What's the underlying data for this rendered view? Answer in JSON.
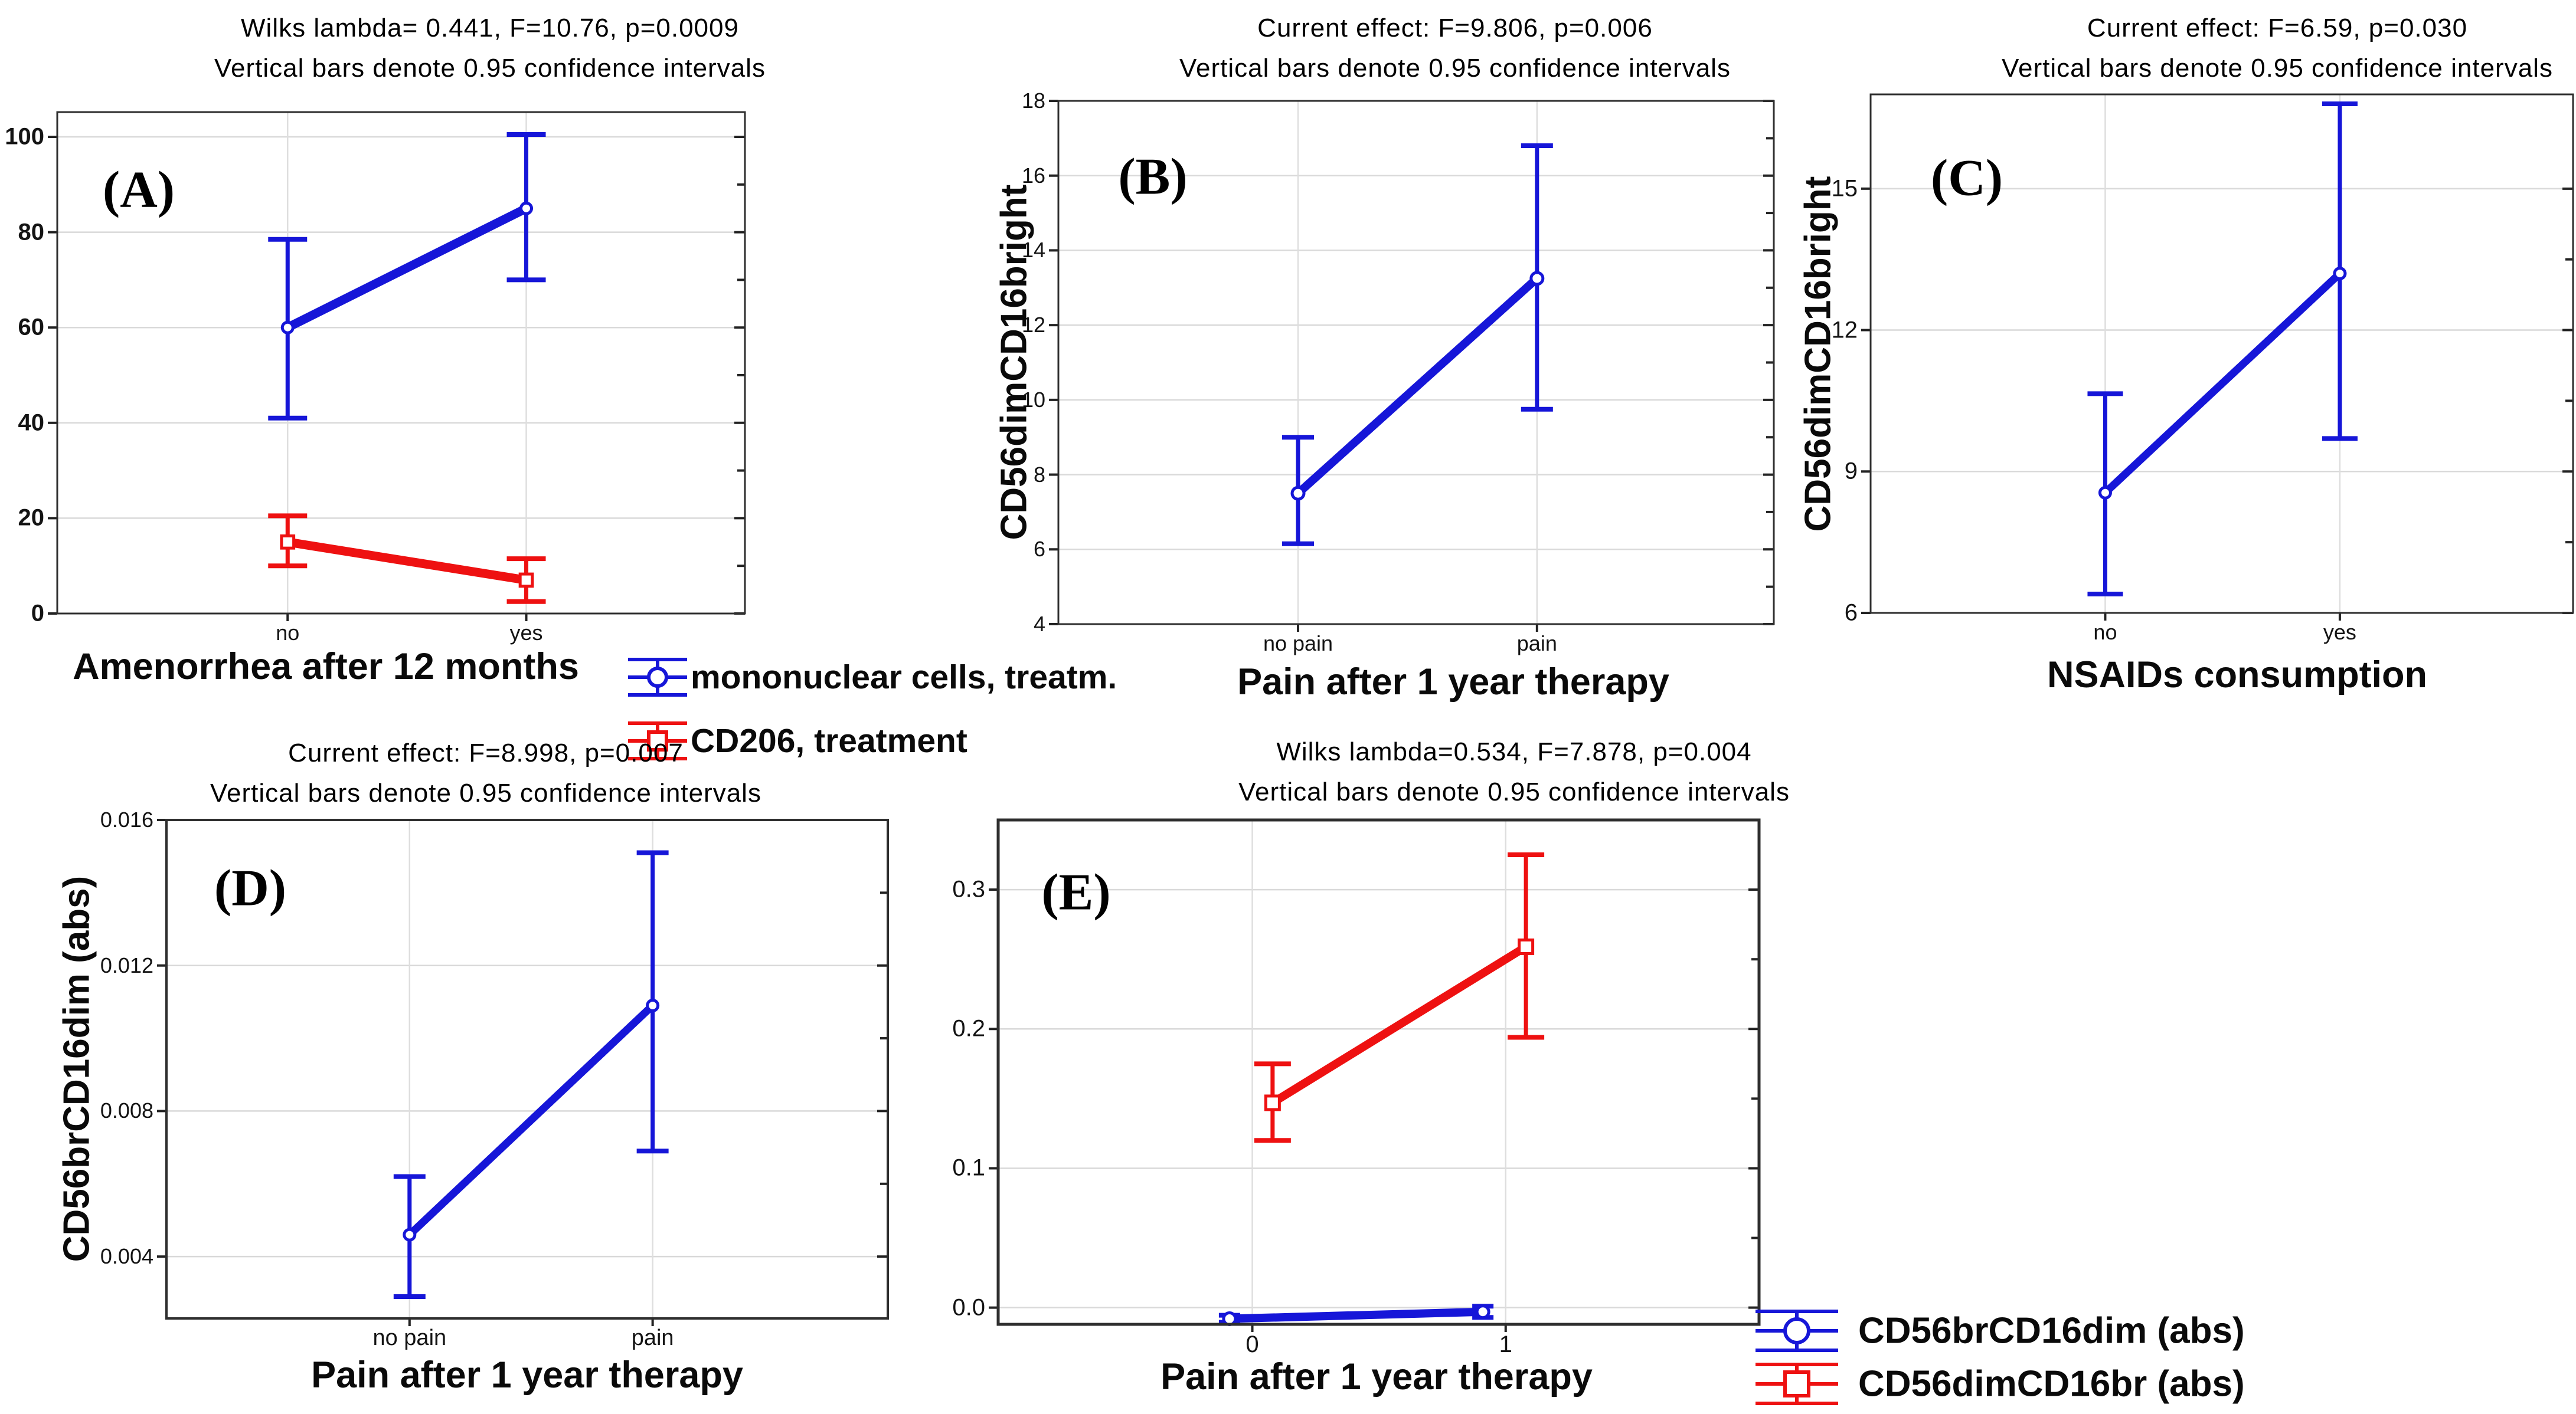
{
  "chart_data": {
    "type": "line",
    "figure_kind": "means-with-95%-confidence-interval-plots",
    "panels": [
      {
        "id": "A",
        "label": "(A)",
        "title": "Wilks lambda= 0.441, F=10.76, p=0.0009",
        "subtitle": "Vertical bars denote 0.95 confidence intervals",
        "x_label": "Amenorrhea after 12 months",
        "y_label": "",
        "categories": [
          "no",
          "yes"
        ],
        "y_ticks": [
          "0",
          "20",
          "40",
          "60",
          "80",
          "100"
        ],
        "y_tick_values": [
          0,
          20,
          40,
          60,
          80,
          100
        ],
        "y_range": [
          0,
          105.2
        ],
        "series": [
          {
            "name": "mononuclear cells, treatm.",
            "color": "#1616d8",
            "marker": "circle",
            "x_offset": 0,
            "points": [
              {
                "category": "no",
                "mean": 60,
                "ci_low": 41,
                "ci_high": 78.5
              },
              {
                "category": "yes",
                "mean": 85,
                "ci_low": 70,
                "ci_high": 100.5
              }
            ]
          },
          {
            "name": "CD206, treatment",
            "color": "#ee1111",
            "marker": "square",
            "x_offset": 0,
            "points": [
              {
                "category": "no",
                "mean": 15,
                "ci_low": 10,
                "ci_high": 20.5
              },
              {
                "category": "yes",
                "mean": 7,
                "ci_low": 2.5,
                "ci_high": 11.5
              }
            ]
          }
        ]
      },
      {
        "id": "B",
        "label": "(B)",
        "title": "Current effect: F=9.806, p=0.006",
        "subtitle": "Vertical bars denote 0.95 confidence intervals",
        "x_label": "Pain after 1 year therapy",
        "y_label": "CD56dimCD16bright",
        "categories": [
          "no pain",
          "pain"
        ],
        "y_ticks": [
          "4",
          "6",
          "8",
          "10",
          "12",
          "14",
          "16",
          "18"
        ],
        "y_tick_values": [
          4,
          6,
          8,
          10,
          12,
          14,
          16,
          18
        ],
        "y_range": [
          4,
          18
        ],
        "series": [
          {
            "name": "CD56dimCD16bright",
            "color": "#1616d8",
            "marker": "circle",
            "x_offset": 0,
            "points": [
              {
                "category": "no pain",
                "mean": 7.5,
                "ci_low": 6.15,
                "ci_high": 9.0
              },
              {
                "category": "pain",
                "mean": 13.25,
                "ci_low": 9.75,
                "ci_high": 16.8
              }
            ]
          }
        ]
      },
      {
        "id": "C",
        "label": "(C)",
        "title": "Current effect: F=6.59, p=0.030",
        "subtitle": "Vertical bars denote 0.95 confidence intervals",
        "x_label": "NSAIDs consumption",
        "y_label": "CD56dimCD16bright",
        "categories": [
          "no",
          "yes"
        ],
        "y_ticks": [
          "6",
          "9",
          "12",
          "15"
        ],
        "y_tick_values": [
          6,
          9,
          12,
          15
        ],
        "y_range": [
          6,
          17
        ],
        "series": [
          {
            "name": "CD56dimCD16bright",
            "color": "#1616d8",
            "marker": "circle",
            "x_offset": 0,
            "points": [
              {
                "category": "no",
                "mean": 8.55,
                "ci_low": 6.4,
                "ci_high": 10.65
              },
              {
                "category": "yes",
                "mean": 13.2,
                "ci_low": 9.7,
                "ci_high": 16.8
              }
            ]
          }
        ]
      },
      {
        "id": "D",
        "label": "(D)",
        "title": "Current effect: F=8.998, p=0.007",
        "subtitle": "Vertical bars denote 0.95 confidence intervals",
        "x_label": "Pain after 1 year therapy",
        "y_label": "CD56brCD16dim (abs)",
        "categories": [
          "no pain",
          "pain"
        ],
        "y_ticks": [
          "0.004",
          "0.008",
          "0.012",
          "0.016"
        ],
        "y_tick_values": [
          0.004,
          0.008,
          0.012,
          0.016
        ],
        "y_range": [
          0.0023,
          0.016
        ],
        "series": [
          {
            "name": "CD56brCD16dim (abs)",
            "color": "#1616d8",
            "marker": "circle",
            "x_offset": 0,
            "points": [
              {
                "category": "no pain",
                "mean": 0.0046,
                "ci_low": 0.0029,
                "ci_high": 0.0062
              },
              {
                "category": "pain",
                "mean": 0.0109,
                "ci_low": 0.0069,
                "ci_high": 0.0151
              }
            ]
          }
        ]
      },
      {
        "id": "E",
        "label": "(E)",
        "title": "Wilks lambda=0.534, F=7.878, p=0.004",
        "subtitle": "Vertical bars denote 0.95 confidence intervals",
        "x_label": "Pain after 1 year therapy",
        "y_label": "",
        "categories": [
          "0",
          "1"
        ],
        "y_ticks": [
          "0.0",
          "0.1",
          "0.2",
          "0.3"
        ],
        "y_tick_values": [
          0.0,
          0.1,
          0.2,
          0.3
        ],
        "y_range": [
          -0.012,
          0.35
        ],
        "series": [
          {
            "name": "CD56brCD16dim (abs)",
            "color": "#1616d8",
            "marker": "circle",
            "x_offset": -0.09,
            "cap_half": 18,
            "points": [
              {
                "category": "0",
                "mean": -0.008,
                "ci_low": -0.0105,
                "ci_high": -0.0055
              },
              {
                "category": "1",
                "mean": -0.003,
                "ci_low": -0.007,
                "ci_high": 0.001
              }
            ]
          },
          {
            "name": "CD56dimCD16br (abs)",
            "color": "#ee1111",
            "marker": "square",
            "x_offset": 0.08,
            "points": [
              {
                "category": "0",
                "mean": 0.147,
                "ci_low": 0.12,
                "ci_high": 0.175
              },
              {
                "category": "1",
                "mean": 0.259,
                "ci_low": 0.194,
                "ci_high": 0.325
              }
            ]
          }
        ]
      }
    ],
    "legends": {
      "panel_a": [
        "mononuclear cells, treatm.",
        "CD206, treatment"
      ],
      "panel_e": [
        "CD56brCD16dim (abs)",
        "CD56dimCD16br (abs)"
      ]
    },
    "colors": {
      "series_blue": "#1616d8",
      "series_red": "#ee1111",
      "gridline": "#d9d9d9",
      "plot_border": "#2e2e2e"
    }
  }
}
